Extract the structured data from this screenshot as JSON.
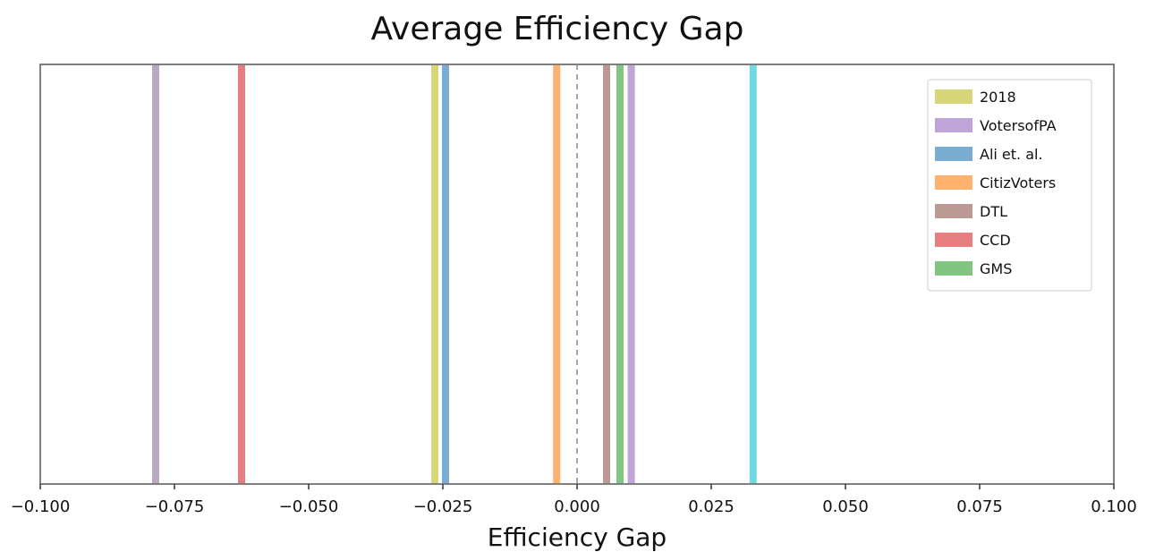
{
  "chart_data": {
    "type": "vertical-lines",
    "title": "Average Efficiency Gap",
    "xlabel": "Efficiency Gap",
    "xlim": [
      -0.1,
      0.1
    ],
    "xticks": [
      -0.1,
      -0.075,
      -0.05,
      -0.025,
      0.0,
      0.025,
      0.05,
      0.075,
      0.1
    ],
    "xtick_labels": [
      "−0.100",
      "−0.075",
      "−0.050",
      "−0.025",
      "0.000",
      "0.025",
      "0.050",
      "0.075",
      "0.100"
    ],
    "grid": false,
    "legend_position": "top-right",
    "reference_line": {
      "x": 0.0,
      "style": "dashed",
      "color": "#888888"
    },
    "series": [
      {
        "name": "2018",
        "x": -0.0265,
        "color": "#bcbd22"
      },
      {
        "name": "VotersofPA",
        "x": 0.0101,
        "color": "#9467bd"
      },
      {
        "name": "Ali et. al.",
        "x": -0.0245,
        "color": "#1f77b4"
      },
      {
        "name": "CitizVoters",
        "x": -0.0038,
        "color": "#ff7f0e"
      },
      {
        "name": "DTL",
        "x": 0.0055,
        "color": "#8c564b"
      },
      {
        "name": "CCD",
        "x": -0.0625,
        "color": "#d62728"
      },
      {
        "name": "GMS",
        "x": 0.008,
        "color": "#2ca02c"
      }
    ],
    "unlabeled_lines": [
      {
        "x": -0.0785,
        "color": "#8c6d99"
      },
      {
        "x": 0.0328,
        "color": "#17becf"
      }
    ]
  }
}
